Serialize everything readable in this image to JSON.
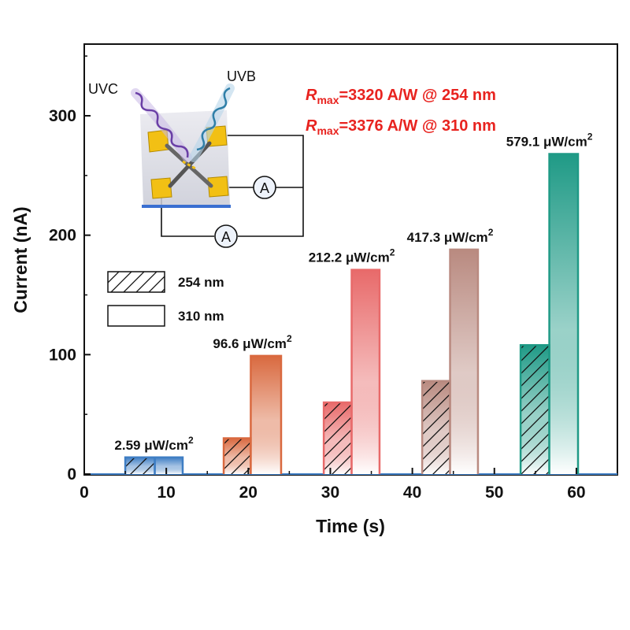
{
  "chart_data": {
    "type": "bar",
    "xlabel": "Time (s)",
    "ylabel": "Current (nA)",
    "xlim": [
      0,
      65
    ],
    "ylim": [
      0,
      360
    ],
    "xticks": [
      0,
      10,
      20,
      30,
      40,
      50,
      60
    ],
    "yticks": [
      0,
      100,
      200,
      300
    ],
    "legend": {
      "placement": "left-middle",
      "entries": [
        {
          "label": "254 nm",
          "pattern": "hatched"
        },
        {
          "label": "310 nm",
          "pattern": "plain"
        }
      ]
    },
    "annotations": [
      {
        "prefix": "R",
        "sub": "max",
        "text": "=3320 A/W @ 254 nm"
      },
      {
        "prefix": "R",
        "sub": "max",
        "text": "=3376 A/W @ 310 nm"
      }
    ],
    "groups": [
      {
        "intensity": "2.59 μW/cm",
        "sup": "2",
        "color": "#3f7ec4",
        "pulse_254": {
          "start": 5.0,
          "end": 8.6,
          "value": 14
        },
        "pulse_310": {
          "start": 8.6,
          "end": 12.0,
          "value": 14
        }
      },
      {
        "intensity": "96.6 μW/cm",
        "sup": "2",
        "color": "#d9693f",
        "pulse_254": {
          "start": 17.0,
          "end": 20.3,
          "value": 30
        },
        "pulse_310": {
          "start": 20.3,
          "end": 24.0,
          "value": 99
        }
      },
      {
        "intensity": "212.2 μW/cm",
        "sup": "2",
        "color": "#e86a6a",
        "pulse_254": {
          "start": 29.2,
          "end": 32.6,
          "value": 60
        },
        "pulse_310": {
          "start": 32.6,
          "end": 36.0,
          "value": 171
        }
      },
      {
        "intensity": "417.3 μW/cm",
        "sup": "2",
        "color": "#b98a80",
        "pulse_254": {
          "start": 41.2,
          "end": 44.6,
          "value": 78
        },
        "pulse_310": {
          "start": 44.6,
          "end": 48.0,
          "value": 188
        }
      },
      {
        "intensity": "579.1 μW/cm",
        "sup": "2",
        "color": "#1f9a86",
        "pulse_254": {
          "start": 53.2,
          "end": 56.7,
          "value": 108
        },
        "pulse_310": {
          "start": 56.7,
          "end": 60.2,
          "value": 268
        }
      }
    ]
  },
  "inset": {
    "uvc_label": "UVC",
    "uvb_label": "UVB",
    "ammeter_symbol": "A"
  }
}
